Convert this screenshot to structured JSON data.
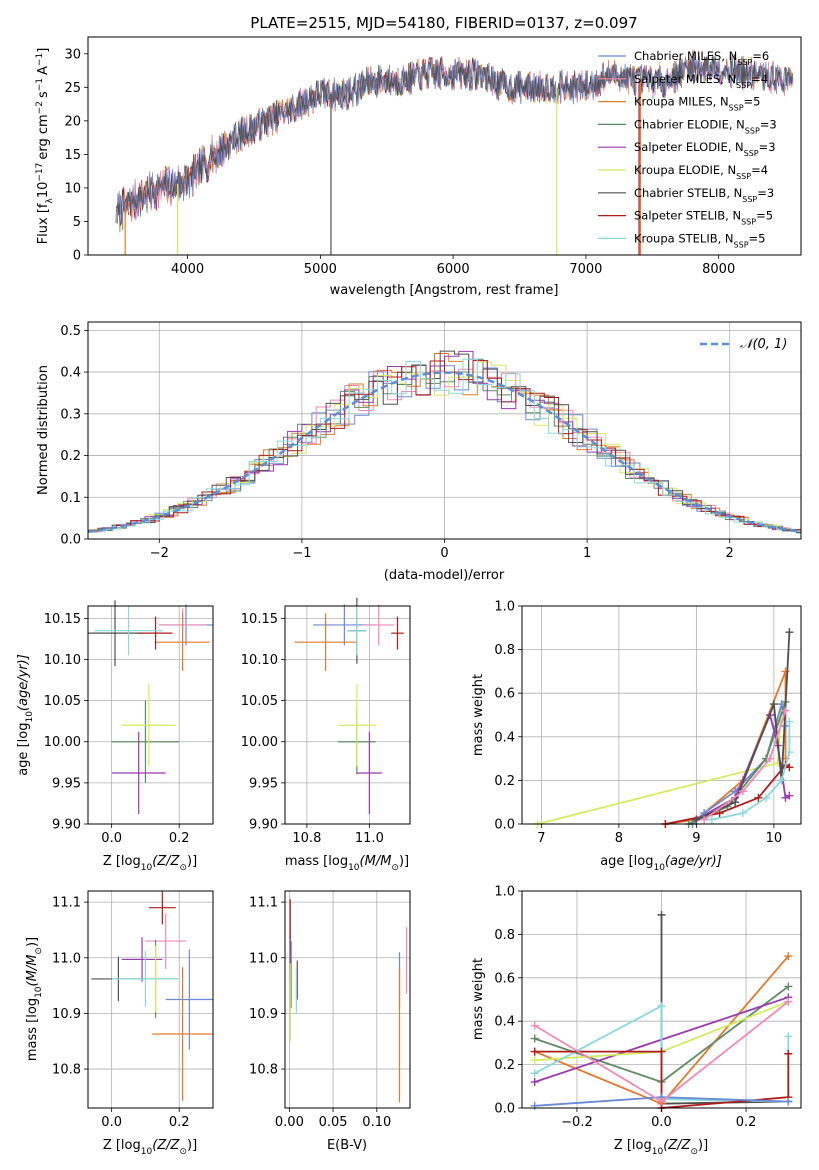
{
  "figure": {
    "title": "PLATE=2515, MJD=54180, FIBERID=0137, z=0.097",
    "colors": {
      "chab_miles": "#6a8ad8",
      "salp_miles": "#f08ab5",
      "krou_miles": "#e07a2c",
      "chab_elodie": "#5f8a62",
      "salp_elodie": "#9a3ab0",
      "krou_elodie": "#d4ea60",
      "chab_stelib": "#505050",
      "salp_stelib": "#b01c1c",
      "krou_stelib": "#8ad8dc",
      "normal": "#5b8ed8",
      "grid": "#b0b0b0"
    }
  },
  "chart_data": [
    {
      "id": "spectrum",
      "type": "line",
      "xlabel": "wavelength [Angstrom, rest frame]",
      "ylabel_main": "Flux [f",
      "ylabel_sub": "λ",
      "ylabel_rest": "10",
      "ylabel_exp": "−17",
      "ylabel_units": "erg cm",
      "ylabel_cm_exp": "−2",
      "ylabel_s": "s",
      "ylabel_s_exp": "−1",
      "ylabel_A": "A",
      "ylabel_A_exp": "−1",
      "ylabel_close": "]",
      "xlim": [
        3250,
        8620
      ],
      "ylim": [
        0,
        32.5
      ],
      "xticks": [
        4000,
        5000,
        6000,
        7000,
        8000
      ],
      "yticks": [
        0,
        5,
        10,
        15,
        20,
        25,
        30
      ],
      "legend_position": "right",
      "continuum_x": [
        3450,
        3600,
        3800,
        4000,
        4200,
        4400,
        4600,
        4800,
        5000,
        5200,
        5400,
        5600,
        5800,
        6000,
        6200,
        6400,
        6600,
        6800,
        7000,
        7200,
        7400,
        7600,
        7800,
        8000,
        8200,
        8550
      ],
      "continuum_y": [
        6,
        8,
        10,
        11,
        15,
        18,
        20,
        22,
        24,
        24,
        26,
        26,
        27,
        27,
        27,
        25,
        25,
        25,
        25,
        27,
        26,
        26,
        28,
        28,
        27,
        26
      ],
      "series": [
        {
          "key": "chab_miles",
          "name": "Chabrier MILES, N",
          "sub": "SSP",
          "value": "=6"
        },
        {
          "key": "salp_miles",
          "name": "Salpeter MILES, N",
          "sub": "SSP",
          "value": "=4"
        },
        {
          "key": "krou_miles",
          "name": "Kroupa MILES, N",
          "sub": "SSP",
          "value": "=5"
        },
        {
          "key": "chab_elodie",
          "name": "Chabrier ELODIE, N",
          "sub": "SSP",
          "value": "=3"
        },
        {
          "key": "salp_elodie",
          "name": "Salpeter ELODIE, N",
          "sub": "SSP",
          "value": "=3"
        },
        {
          "key": "krou_elodie",
          "name": "Kroupa ELODIE, N",
          "sub": "SSP",
          "value": "=4"
        },
        {
          "key": "chab_stelib",
          "name": "Chabrier STELIB, N",
          "sub": "SSP",
          "value": "=3"
        },
        {
          "key": "salp_stelib",
          "name": "Salpeter STELIB, N",
          "sub": "SSP",
          "value": "=5"
        },
        {
          "key": "krou_stelib",
          "name": "Kroupa STELIB, N",
          "sub": "SSP",
          "value": "=5"
        }
      ]
    },
    {
      "id": "residuals",
      "type": "line",
      "xlabel": "(data-model)/error",
      "ylabel": "Normed distribution",
      "xlim": [
        -2.5,
        2.5
      ],
      "ylim": [
        0,
        0.52
      ],
      "xticks": [
        -2,
        -1,
        0,
        1,
        2
      ],
      "yticks": [
        0.0,
        0.1,
        0.2,
        0.3,
        0.4,
        0.5
      ],
      "legend": "𝒩(0, 1)",
      "legend_position": "top-right",
      "grid": true
    },
    {
      "id": "age_vs_Z",
      "type": "scatter",
      "xlabel": "Z [log",
      "xlabel_sub": "10",
      "xlabel_rest": "(Z/Z",
      "xlabel_sun_sub": "⊙",
      "xlabel_close": ")]",
      "ylabel": "age  [log",
      "ylabel_sub": "10",
      "ylabel_rest": "(age/yr)]",
      "xlim": [
        -0.07,
        0.3
      ],
      "ylim": [
        9.9,
        10.165
      ],
      "xticks": [
        0.0,
        0.2
      ],
      "yticks": [
        9.9,
        9.95,
        10.0,
        10.05,
        10.1,
        10.15
      ],
      "points": [
        {
          "key": "chab_miles",
          "x": 0.22,
          "xerr": 0.08,
          "y": 10.142,
          "yerr": 0.025
        },
        {
          "key": "salp_miles",
          "x": 0.21,
          "xerr": 0.07,
          "y": 10.142,
          "yerr": 0.02
        },
        {
          "key": "krou_miles",
          "x": 0.21,
          "xerr": 0.08,
          "y": 10.121,
          "yerr": 0.035
        },
        {
          "key": "chab_elodie",
          "x": 0.1,
          "xerr": 0.1,
          "y": 10.0,
          "yerr": 0.05
        },
        {
          "key": "salp_elodie",
          "x": 0.08,
          "xerr": 0.08,
          "y": 9.962,
          "yerr": 0.05
        },
        {
          "key": "krou_elodie",
          "x": 0.11,
          "xerr": 0.08,
          "y": 10.02,
          "yerr": 0.05
        },
        {
          "key": "chab_stelib",
          "x": 0.01,
          "xerr": 0.08,
          "y": 10.132,
          "yerr": 0.04
        },
        {
          "key": "salp_stelib",
          "x": 0.13,
          "xerr": 0.05,
          "y": 10.132,
          "yerr": 0.02
        },
        {
          "key": "krou_stelib",
          "x": 0.05,
          "xerr": 0.1,
          "y": 10.135,
          "yerr": 0.03
        }
      ]
    },
    {
      "id": "age_vs_mass",
      "type": "scatter",
      "xlabel": "mass [log",
      "xlabel_sub": "10",
      "xlabel_rest": "(M/M",
      "xlabel_sun_sub": "⊙",
      "xlabel_close": ")]",
      "xlim": [
        10.73,
        11.13
      ],
      "ylim": [
        9.9,
        10.165
      ],
      "xticks": [
        10.8,
        11.0
      ],
      "yticks": [
        9.9,
        9.95,
        10.0,
        10.05,
        10.1,
        10.15
      ],
      "points": [
        {
          "key": "chab_miles",
          "x": 10.92,
          "xerr": 0.1,
          "y": 10.142,
          "yerr": 0.025
        },
        {
          "key": "salp_miles",
          "x": 11.03,
          "xerr": 0.05,
          "y": 10.142,
          "yerr": 0.025
        },
        {
          "key": "krou_miles",
          "x": 10.86,
          "xerr": 0.1,
          "y": 10.121,
          "yerr": 0.035
        },
        {
          "key": "chab_elodie",
          "x": 10.96,
          "xerr": 0.06,
          "y": 10.0,
          "yerr": 0.04
        },
        {
          "key": "salp_elodie",
          "x": 11.0,
          "xerr": 0.04,
          "y": 9.962,
          "yerr": 0.05
        },
        {
          "key": "krou_elodie",
          "x": 10.96,
          "xerr": 0.06,
          "y": 10.02,
          "yerr": 0.05
        },
        {
          "key": "chab_stelib",
          "x": 10.96,
          "xerr": 0.03,
          "y": 10.135,
          "yerr": 0.04
        },
        {
          "key": "salp_stelib",
          "x": 11.09,
          "xerr": 0.02,
          "y": 10.132,
          "yerr": 0.02
        },
        {
          "key": "krou_stelib",
          "x": 10.96,
          "xerr": 0.03,
          "y": 10.135,
          "yerr": 0.03
        }
      ]
    },
    {
      "id": "weight_vs_age",
      "type": "line",
      "xlabel": "age  [log",
      "xlabel_sub": "10",
      "xlabel_rest": "(age/yr)]",
      "ylabel": "mass weight",
      "xlim": [
        6.75,
        10.35
      ],
      "ylim": [
        0,
        1
      ],
      "xticks": [
        7,
        8,
        9,
        10
      ],
      "yticks": [
        0.0,
        0.2,
        0.4,
        0.6,
        0.8,
        1.0
      ],
      "grid": true,
      "series": [
        {
          "key": "krou_elodie",
          "x": [
            6.95,
            10.05,
            10.1,
            10.15
          ],
          "y": [
            0.0,
            0.28,
            0.55,
            0.45
          ]
        },
        {
          "key": "krou_miles",
          "x": [
            8.6,
            9.0,
            9.6,
            10.15,
            10.15
          ],
          "y": [
            0.0,
            0.02,
            0.2,
            0.7,
            0.3
          ]
        },
        {
          "key": "salp_stelib",
          "x": [
            8.6,
            9.3,
            9.8,
            10.15,
            10.2
          ],
          "y": [
            0.0,
            0.05,
            0.12,
            0.27,
            0.26
          ]
        },
        {
          "key": "chab_miles",
          "x": [
            8.95,
            9.1,
            9.5,
            9.9,
            10.1,
            10.15
          ],
          "y": [
            0.0,
            0.05,
            0.15,
            0.3,
            0.55,
            0.45
          ]
        },
        {
          "key": "chab_elodie",
          "x": [
            8.9,
            9.4,
            9.9,
            10.15
          ],
          "y": [
            0.0,
            0.08,
            0.3,
            0.56
          ]
        },
        {
          "key": "salp_elodie",
          "x": [
            9.0,
            9.5,
            9.95,
            10.05,
            10.15,
            10.2
          ],
          "y": [
            0.02,
            0.12,
            0.5,
            0.36,
            0.12,
            0.13
          ]
        },
        {
          "key": "chab_stelib",
          "x": [
            9.0,
            9.5,
            10.0,
            10.1,
            10.2
          ],
          "y": [
            0.02,
            0.1,
            0.55,
            0.2,
            0.88
          ]
        },
        {
          "key": "salp_miles",
          "x": [
            9.1,
            9.6,
            9.95,
            10.15
          ],
          "y": [
            0.02,
            0.15,
            0.3,
            0.52
          ]
        },
        {
          "key": "krou_stelib",
          "x": [
            9.2,
            9.6,
            9.9,
            10.1,
            10.2,
            10.2
          ],
          "y": [
            0.02,
            0.05,
            0.12,
            0.2,
            0.33,
            0.47
          ]
        }
      ]
    },
    {
      "id": "mass_vs_Z",
      "type": "scatter",
      "xlabel": "Z [log",
      "xlabel_sub": "10",
      "xlabel_rest": "(Z/Z",
      "xlabel_sun_sub": "⊙",
      "xlabel_close": ")]",
      "ylabel": "mass [log",
      "ylabel_sub": "10",
      "ylabel_rest": "(M/M",
      "ylabel_sun_sub": "⊙",
      "ylabel_close": ")]",
      "xlim": [
        -0.07,
        0.3
      ],
      "ylim": [
        10.73,
        11.12
      ],
      "xticks": [
        0.0,
        0.2
      ],
      "yticks": [
        10.8,
        10.9,
        11.0,
        11.1
      ],
      "points": [
        {
          "key": "chab_miles",
          "x": 0.23,
          "xerr": 0.07,
          "y": 10.925,
          "yerr": 0.09
        },
        {
          "key": "salp_miles",
          "x": 0.16,
          "xerr": 0.06,
          "y": 11.03,
          "yerr": 0.05
        },
        {
          "key": "krou_miles",
          "x": 0.21,
          "xerr": 0.09,
          "y": 10.863,
          "yerr": 0.12
        },
        {
          "key": "chab_elodie",
          "x": 0.13,
          "xerr": 0.07,
          "y": 10.962,
          "yerr": 0.07
        },
        {
          "key": "salp_elodie",
          "x": 0.09,
          "xerr": 0.06,
          "y": 10.997,
          "yerr": 0.04
        },
        {
          "key": "krou_elodie",
          "x": 0.13,
          "xerr": 0.07,
          "y": 10.962,
          "yerr": 0.06
        },
        {
          "key": "chab_stelib",
          "x": 0.02,
          "xerr": 0.08,
          "y": 10.962,
          "yerr": 0.04
        },
        {
          "key": "salp_stelib",
          "x": 0.15,
          "xerr": 0.04,
          "y": 11.09,
          "yerr": 0.03
        },
        {
          "key": "krou_stelib",
          "x": 0.1,
          "xerr": 0.1,
          "y": 10.962,
          "yerr": 0.05
        }
      ]
    },
    {
      "id": "mass_vs_ebv",
      "type": "scatter",
      "xlabel": "E(B-V)",
      "xlim": [
        -0.005,
        0.138
      ],
      "ylim": [
        10.73,
        11.12
      ],
      "xticks": [
        0.0,
        0.05,
        0.1
      ],
      "xtick_labels": [
        "0.00",
        "0.05",
        "0.10"
      ],
      "yticks": [
        10.8,
        10.9,
        11.0,
        11.1
      ],
      "points": [
        {
          "key": "chab_miles",
          "x": 0.126,
          "y": 10.96,
          "yerr": 0.05
        },
        {
          "key": "salp_miles",
          "x": 0.134,
          "y": 10.995,
          "yerr": 0.06
        },
        {
          "key": "krou_miles",
          "x": 0.126,
          "y": 10.86,
          "yerr": 0.12
        },
        {
          "key": "chab_elodie",
          "x": 0.002,
          "y": 10.97,
          "yerr": 0.06
        },
        {
          "key": "salp_elodie",
          "x": 0.001,
          "y": 11.0,
          "yerr": 0.04
        },
        {
          "key": "krou_elodie",
          "x": 0.001,
          "y": 10.92,
          "yerr": 0.07
        },
        {
          "key": "chab_stelib",
          "x": 0.009,
          "y": 10.96,
          "yerr": 0.035
        },
        {
          "key": "salp_stelib",
          "x": 0.001,
          "y": 11.07,
          "yerr": 0.035
        },
        {
          "key": "krou_stelib",
          "x": 0.008,
          "y": 10.94,
          "yerr": 0.04
        }
      ]
    },
    {
      "id": "weight_vs_Z",
      "type": "line",
      "xlabel": "Z [log",
      "xlabel_sub": "10",
      "xlabel_rest": "(Z/Z",
      "xlabel_sun_sub": "⊙",
      "xlabel_close": ")]",
      "ylabel": "mass weight",
      "xlim": [
        -0.33,
        0.33
      ],
      "ylim": [
        0,
        1
      ],
      "xticks": [
        -0.2,
        0.0,
        0.2
      ],
      "xtick_labels": [
        "−0.2",
        "0.0",
        "0.2"
      ],
      "yticks": [
        0.0,
        0.2,
        0.4,
        0.6,
        0.8,
        1.0
      ],
      "grid": true,
      "series": [
        {
          "key": "chab_stelib",
          "x": [
            0.0,
            0.0,
            0.3
          ],
          "y": [
            0.89,
            0.02,
            0.03
          ]
        },
        {
          "key": "krou_miles",
          "x": [
            -0.3,
            0.0,
            0.3
          ],
          "y": [
            0.26,
            0.02,
            0.7
          ]
        },
        {
          "key": "chab_elodie",
          "x": [
            -0.3,
            0.0,
            0.3
          ],
          "y": [
            0.32,
            0.12,
            0.56
          ]
        },
        {
          "key": "salp_elodie",
          "x": [
            -0.3,
            0.3
          ],
          "y": [
            0.12,
            0.51
          ]
        },
        {
          "key": "krou_elodie",
          "x": [
            -0.3,
            0.0,
            0.3
          ],
          "y": [
            0.22,
            0.26,
            0.49
          ]
        },
        {
          "key": "krou_stelib",
          "x": [
            -0.3,
            0.0,
            0.0,
            0.3,
            0.3
          ],
          "y": [
            0.16,
            0.47,
            0.04,
            0.03,
            0.33
          ]
        },
        {
          "key": "salp_stelib",
          "x": [
            -0.3,
            0.0,
            0.0,
            0.3,
            0.3
          ],
          "y": [
            0.26,
            0.26,
            0.0,
            0.05,
            0.25
          ]
        },
        {
          "key": "chab_miles",
          "x": [
            -0.3,
            0.0,
            0.3
          ],
          "y": [
            0.01,
            0.05,
            0.03
          ]
        },
        {
          "key": "salp_miles",
          "x": [
            -0.3,
            0.0,
            0.3
          ],
          "y": [
            0.38,
            0.03,
            0.49
          ]
        }
      ]
    }
  ]
}
